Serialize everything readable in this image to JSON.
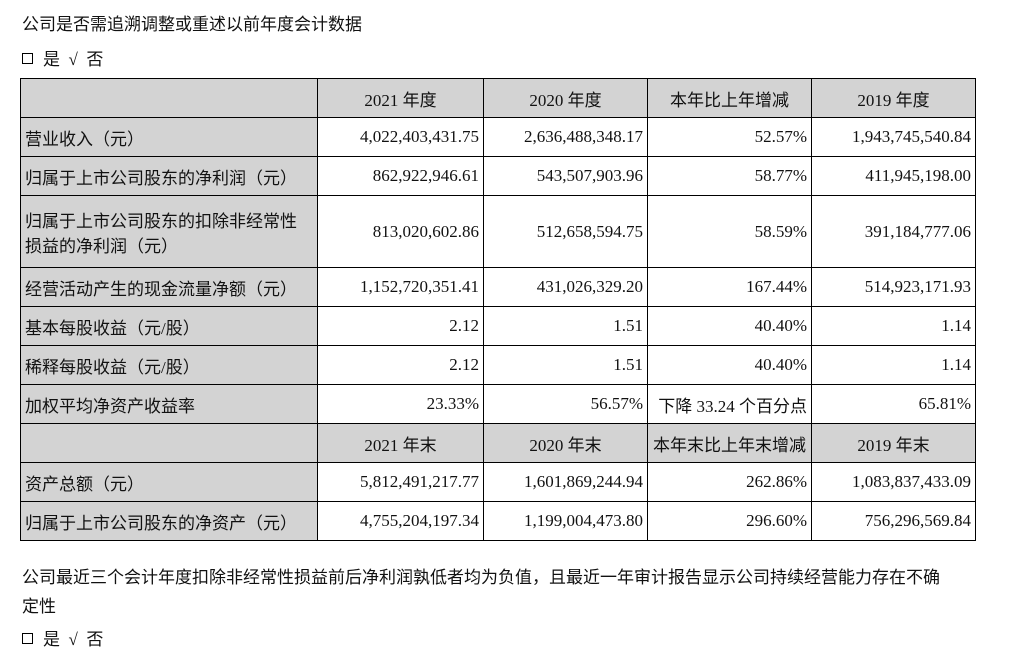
{
  "heading": "公司是否需追溯调整或重述以前年度会计数据",
  "choice1": {
    "yes": "是",
    "check": "√",
    "no": "否"
  },
  "table": {
    "header1": [
      "",
      "2021 年度",
      "2020 年度",
      "本年比上年增减",
      "2019 年度"
    ],
    "rows1": [
      [
        "营业收入（元）",
        "4,022,403,431.75",
        "2,636,488,348.17",
        "52.57%",
        "1,943,745,540.84"
      ],
      [
        "归属于上市公司股东的净利润（元）",
        "862,922,946.61",
        "543,507,903.96",
        "58.77%",
        "411,945,198.00"
      ],
      [
        "归属于上市公司股东的扣除非经常性损益的净利润（元）",
        "813,020,602.86",
        "512,658,594.75",
        "58.59%",
        "391,184,777.06"
      ],
      [
        "经营活动产生的现金流量净额（元）",
        "1,152,720,351.41",
        "431,026,329.20",
        "167.44%",
        "514,923,171.93"
      ],
      [
        "基本每股收益（元/股）",
        "2.12",
        "1.51",
        "40.40%",
        "1.14"
      ],
      [
        "稀释每股收益（元/股）",
        "2.12",
        "1.51",
        "40.40%",
        "1.14"
      ],
      [
        "加权平均净资产收益率",
        "23.33%",
        "56.57%",
        "下降 33.24 个百分点",
        "65.81%"
      ]
    ],
    "header2": [
      "",
      "2021 年末",
      "2020 年末",
      "本年末比上年末增减",
      "2019 年末"
    ],
    "rows2": [
      [
        "资产总额（元）",
        "5,812,491,217.77",
        "1,601,869,244.94",
        "262.86%",
        "1,083,837,433.09"
      ],
      [
        "归属于上市公司股东的净资产（元）",
        "4,755,204,197.34",
        "1,199,004,473.80",
        "296.60%",
        "756,296,569.84"
      ]
    ]
  },
  "footer_text": "公司最近三个会计年度扣除非经常性损益前后净利润孰低者均为负值，且最近一年审计报告显示公司持续经营能力存在不确定性",
  "footer_line1": "公司最近三个会计年度扣除非经常性损益前后净利润孰低者均为负值，且最近一年审计报告显示公司持续经营能力存在不确",
  "footer_line2": "定性",
  "choice2": {
    "yes": "是",
    "check": "√",
    "no": "否"
  }
}
